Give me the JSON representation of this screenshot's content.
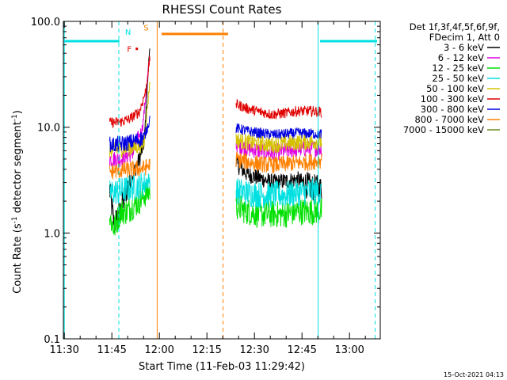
{
  "chart_data": {
    "type": "line",
    "title": "RHESSI Count Rates",
    "xlabel": "Start Time (11-Feb-03 11:29:42)",
    "ylabel_parts": [
      "Count Rate (s",
      "-1",
      " detector segment",
      "-1",
      ")"
    ],
    "ylabel": "Count Rate (s^-1 detector segment^-1)",
    "yscale": "log",
    "ylim": [
      0.1,
      100.0
    ],
    "xlim_minutes": [
      0,
      100
    ],
    "x_ticks": [
      {
        "m": 0.3,
        "label": "11:30"
      },
      {
        "m": 15.3,
        "label": "11:45"
      },
      {
        "m": 30.3,
        "label": "12:00"
      },
      {
        "m": 45.3,
        "label": "12:15"
      },
      {
        "m": 60.3,
        "label": "12:30"
      },
      {
        "m": 75.3,
        "label": "12:45"
      },
      {
        "m": 90.3,
        "label": "13:00"
      }
    ],
    "y_ticks": [
      {
        "v": 0.1,
        "label": "0.1"
      },
      {
        "v": 1.0,
        "label": "1.0"
      },
      {
        "v": 10.0,
        "label": "10.0"
      },
      {
        "v": 100.0,
        "label": "100.0"
      }
    ],
    "legend_header": [
      "Det 1f,3f,4f,5f,6f,9f,",
      "FDecim 1, Att 0"
    ],
    "legend_position": "right-outside",
    "series": [
      {
        "name": "3 - 6 keV",
        "color": "#000000",
        "segments": [
          [
            [
              14.6,
              2.6
            ],
            [
              16.0,
              1.2
            ],
            [
              18.0,
              1.6
            ],
            [
              20.0,
              2.6
            ],
            [
              22.0,
              3.6
            ],
            [
              24.0,
              5.0
            ],
            [
              25.5,
              7.2
            ],
            [
              27.3,
              62.0
            ]
          ],
          [
            [
              54.5,
              4.5
            ],
            [
              58.0,
              3.6
            ],
            [
              62.0,
              3.3
            ],
            [
              66.0,
              3.0
            ],
            [
              70.0,
              3.1
            ],
            [
              74.0,
              3.2
            ],
            [
              78.0,
              2.7
            ],
            [
              81.5,
              2.6
            ]
          ]
        ]
      },
      {
        "name": "6 - 12 keV",
        "color": "#e000e0",
        "segments": [
          [
            [
              14.6,
              5.0
            ],
            [
              18.0,
              5.0
            ],
            [
              22.0,
              5.8
            ],
            [
              25.0,
              10.0
            ],
            [
              27.3,
              48.0
            ]
          ],
          [
            [
              54.5,
              6.8
            ],
            [
              58.0,
              6.3
            ],
            [
              62.0,
              6.0
            ],
            [
              66.0,
              5.7
            ],
            [
              70.0,
              6.0
            ],
            [
              74.0,
              6.2
            ],
            [
              78.0,
              6.3
            ],
            [
              81.5,
              6.3
            ]
          ]
        ]
      },
      {
        "name": "12 - 25 keV",
        "color": "#00e000",
        "segments": [
          [
            [
              14.6,
              1.4
            ],
            [
              16.0,
              1.1
            ],
            [
              18.0,
              1.6
            ],
            [
              20.0,
              1.6
            ],
            [
              22.0,
              1.8
            ],
            [
              24.0,
              2.0
            ],
            [
              25.5,
              2.3
            ],
            [
              27.3,
              2.5
            ]
          ],
          [
            [
              54.5,
              1.8
            ],
            [
              58.0,
              1.6
            ],
            [
              62.0,
              1.5
            ],
            [
              66.0,
              1.5
            ],
            [
              70.0,
              1.5
            ],
            [
              74.0,
              1.6
            ],
            [
              78.0,
              1.6
            ],
            [
              81.5,
              1.6
            ]
          ]
        ]
      },
      {
        "name": "25 - 50 keV",
        "color": "#00e0e0",
        "segments": [
          [
            [
              14.6,
              2.4
            ],
            [
              18.0,
              2.5
            ],
            [
              22.0,
              2.7
            ],
            [
              25.5,
              2.9
            ],
            [
              27.3,
              3.2
            ]
          ],
          [
            [
              54.5,
              2.5
            ],
            [
              58.0,
              2.4
            ],
            [
              62.0,
              2.3
            ],
            [
              66.0,
              2.3
            ],
            [
              70.0,
              2.3
            ],
            [
              74.0,
              2.4
            ],
            [
              78.0,
              2.5
            ],
            [
              81.5,
              2.4
            ]
          ]
        ]
      },
      {
        "name": "50 - 100 keV",
        "color": "#d4c200",
        "segments": [
          [
            [
              14.6,
              6.0
            ],
            [
              18.0,
              6.2
            ],
            [
              22.0,
              6.4
            ],
            [
              25.5,
              7.0
            ],
            [
              27.3,
              28.0
            ]
          ],
          [
            [
              54.5,
              7.6
            ],
            [
              58.0,
              7.2
            ],
            [
              62.0,
              7.0
            ],
            [
              66.0,
              6.8
            ],
            [
              70.0,
              7.0
            ],
            [
              74.0,
              7.2
            ],
            [
              78.0,
              7.3
            ],
            [
              81.5,
              7.3
            ]
          ]
        ]
      },
      {
        "name": "100 - 300 keV",
        "color": "#e00000",
        "segments": [
          [
            [
              14.6,
              11.0
            ],
            [
              18.0,
              11.2
            ],
            [
              21.0,
              12.0
            ],
            [
              24.0,
              14.0
            ],
            [
              26.0,
              22.0
            ],
            [
              27.3,
              45.0
            ]
          ],
          [
            [
              54.5,
              16.5
            ],
            [
              58.0,
              15.0
            ],
            [
              62.0,
              14.0
            ],
            [
              66.0,
              13.2
            ],
            [
              70.0,
              13.6
            ],
            [
              74.0,
              14.2
            ],
            [
              78.0,
              14.2
            ],
            [
              81.5,
              14.0
            ]
          ]
        ]
      },
      {
        "name": "300 - 800 keV",
        "color": "#0000e0",
        "segments": [
          [
            [
              14.6,
              6.8
            ],
            [
              18.0,
              6.9
            ],
            [
              22.0,
              7.3
            ],
            [
              25.5,
              8.0
            ],
            [
              27.3,
              12.0
            ]
          ],
          [
            [
              54.5,
              9.8
            ],
            [
              58.0,
              9.2
            ],
            [
              62.0,
              8.8
            ],
            [
              66.0,
              8.5
            ],
            [
              70.0,
              8.6
            ],
            [
              74.0,
              8.8
            ],
            [
              78.0,
              8.7
            ],
            [
              81.5,
              8.6
            ]
          ]
        ]
      },
      {
        "name": "800 - 7000 keV",
        "color": "#ff8000",
        "segments": [
          [
            [
              14.6,
              3.8
            ],
            [
              18.0,
              3.9
            ],
            [
              22.0,
              4.0
            ],
            [
              25.5,
              4.1
            ],
            [
              27.3,
              4.4
            ]
          ],
          [
            [
              54.5,
              5.0
            ],
            [
              58.0,
              4.7
            ],
            [
              62.0,
              4.5
            ],
            [
              66.0,
              4.4
            ],
            [
              70.0,
              4.5
            ],
            [
              74.0,
              4.6
            ],
            [
              78.0,
              4.7
            ],
            [
              81.5,
              4.9
            ]
          ]
        ]
      },
      {
        "name": "7000 - 15000 keV",
        "color": "#6b8e23",
        "segments": []
      }
    ],
    "annotations": [
      {
        "type": "level",
        "label": "",
        "color": "#00e0e0",
        "x_from": 0.3,
        "x_to": 17.7,
        "y": 65.0
      },
      {
        "type": "level",
        "label": "",
        "color": "#00e0e0",
        "x_from": 81.0,
        "x_to": 99.0,
        "y": 65.0
      },
      {
        "type": "level",
        "label": "",
        "color": "#ff8000",
        "x_from": 31.0,
        "x_to": 52.0,
        "y": 76.0
      },
      {
        "type": "vline",
        "color": "#00e0e0",
        "style": "solid",
        "x": 0.3
      },
      {
        "type": "vline",
        "color": "#00e0e0",
        "style": "dashed",
        "x": 17.5
      },
      {
        "type": "vline",
        "color": "#ff8000",
        "style": "solid",
        "x": 29.6
      },
      {
        "type": "vline",
        "color": "#ff8000",
        "style": "dashed",
        "x": 50.4
      },
      {
        "type": "vline",
        "color": "#00e0e0",
        "style": "solid",
        "x": 80.4
      },
      {
        "type": "vline",
        "color": "#00e0e0",
        "style": "dashed",
        "x": 98.4
      },
      {
        "type": "marker-label",
        "label": "N",
        "color": "#00e0e0",
        "x": 20.4,
        "y": 80.0
      },
      {
        "type": "marker-label",
        "label": "F",
        "color": "#e00000",
        "x": 20.8,
        "y": 55.0
      },
      {
        "type": "marker-label",
        "label": "S",
        "color": "#ff8000",
        "x": 26.1,
        "y": 88.0
      }
    ],
    "grid": false
  },
  "timestamp": "15-Oct-2021 04:13"
}
